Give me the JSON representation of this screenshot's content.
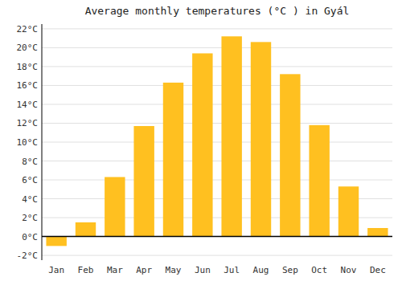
{
  "chart_data": {
    "type": "bar",
    "title": "Average monthly temperatures (°C ) in Gyál",
    "categories": [
      "Jan",
      "Feb",
      "Mar",
      "Apr",
      "May",
      "Jun",
      "Jul",
      "Aug",
      "Sep",
      "Oct",
      "Nov",
      "Dec"
    ],
    "values": [
      -1.0,
      1.5,
      6.3,
      11.7,
      16.3,
      19.4,
      21.2,
      20.6,
      17.2,
      11.8,
      5.3,
      0.9
    ],
    "color": "#FFC020",
    "ylim": [
      -2.5,
      22.5
    ],
    "yticks": [
      {
        "value": -2,
        "label": "-2°C"
      },
      {
        "value": 0,
        "label": "0°C"
      },
      {
        "value": 2,
        "label": "2°C"
      },
      {
        "value": 4,
        "label": "4°C"
      },
      {
        "value": 6,
        "label": "6°C"
      },
      {
        "value": 8,
        "label": "8°C"
      },
      {
        "value": 10,
        "label": "10°C"
      },
      {
        "value": 12,
        "label": "12°C"
      },
      {
        "value": 14,
        "label": "14°C"
      },
      {
        "value": 16,
        "label": "16°C"
      },
      {
        "value": 18,
        "label": "18°C"
      },
      {
        "value": 20,
        "label": "20°C"
      },
      {
        "value": 22,
        "label": "22°C"
      }
    ],
    "grid": true
  }
}
